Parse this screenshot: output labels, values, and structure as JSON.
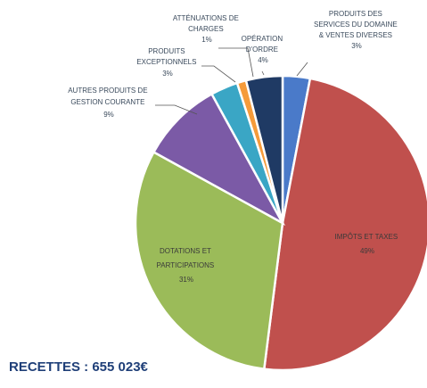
{
  "chart_data": {
    "type": "pie",
    "slices": [
      {
        "label": "PRODUITS DES SERVICES DU DOMAINE & VENTES DIVERSES",
        "pct_label": "3%",
        "value": 3,
        "color": "#4a7ac9"
      },
      {
        "label": "IMPÔTS ET TAXES",
        "pct_label": "49%",
        "value": 49,
        "color": "#c0504d"
      },
      {
        "label": "DOTATIONS ET PARTICIPATIONS",
        "pct_label": "31%",
        "value": 31,
        "color": "#9bbb59"
      },
      {
        "label": "AUTRES PRODUITS DE GESTION COURANTE",
        "pct_label": "9%",
        "value": 9,
        "color": "#7b5aa6"
      },
      {
        "label": "PRODUITS EXCEPTIONNELS",
        "pct_label": "3%",
        "value": 3,
        "color": "#3aa6c5"
      },
      {
        "label": "ATTÉNUATIONS DE CHARGES",
        "pct_label": "1%",
        "value": 1,
        "color": "#f59b3a"
      },
      {
        "label": "OPÉRATION D'ORDRE",
        "pct_label": "4%",
        "value": 4,
        "color": "#1f3a64"
      }
    ]
  },
  "labels": {
    "services_l1": "PRODUITS DES",
    "services_l2": "SERVICES DU DOMAINE",
    "services_l3": "& VENTES DIVERSES",
    "services_pct": "3%",
    "impots_l1": "IMPÔTS ET TAXES",
    "impots_pct": "49%",
    "dotations_l1": "DOTATIONS ET",
    "dotations_l2": "PARTICIPATIONS",
    "dotations_pct": "31%",
    "autres_l1": "AUTRES PRODUITS DE",
    "autres_l2": "GESTION COURANTE",
    "autres_pct": "9%",
    "exceptionnels_l1": "PRODUITS",
    "exceptionnels_l2": "EXCEPTIONNELS",
    "exceptionnels_pct": "3%",
    "attenuations_l1": "ATTÉNUATIONS DE",
    "attenuations_l2": "CHARGES",
    "attenuations_pct": "1%",
    "ordre_l1": "OPÉRATION",
    "ordre_l2": "D'ORDRE",
    "ordre_pct": "4%"
  },
  "total": "RECETTES : 655 023€"
}
